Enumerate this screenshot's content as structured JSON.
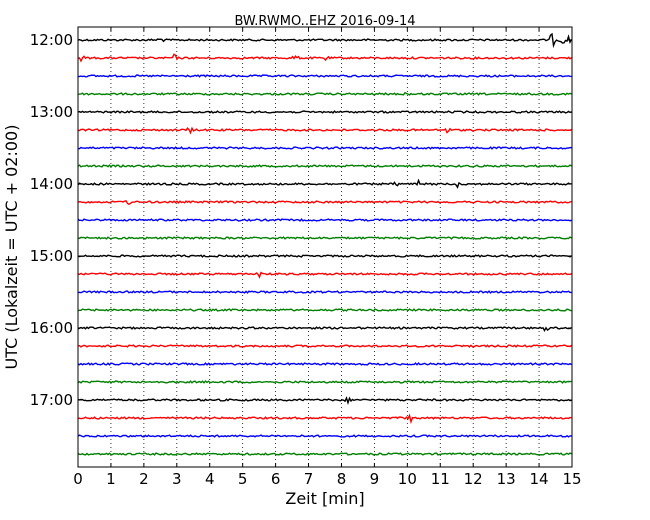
{
  "chart_data": {
    "type": "line",
    "title": "BW.RWMO..EHZ 2016-09-14",
    "xlabel": "Zeit  [min]",
    "ylabel": "UTC (Lokalzeit = UTC + 02:00)",
    "xlim": [
      0,
      15
    ],
    "x_ticks": [
      "0",
      "1",
      "2",
      "3",
      "4",
      "5",
      "6",
      "7",
      "8",
      "9",
      "10",
      "11",
      "12",
      "13",
      "14",
      "15"
    ],
    "y_ticks": [
      "12:00",
      "13:00",
      "14:00",
      "15:00",
      "16:00",
      "17:00"
    ],
    "y_tick_traces": [
      0,
      4,
      8,
      12,
      16,
      20
    ],
    "trace_count": 24,
    "trace_colors": [
      "#000000",
      "#ff0000",
      "#0000ff",
      "#008000"
    ],
    "grid": "vertical dotted",
    "events": [
      {
        "trace": 0,
        "x": 14.4,
        "amp": 7
      },
      {
        "trace": 0,
        "x": 14.7,
        "amp": 4
      },
      {
        "trace": 0,
        "x": 14.9,
        "amp": 4
      },
      {
        "trace": 0,
        "x": 2.5,
        "amp": 3
      },
      {
        "trace": 1,
        "x": 0.1,
        "amp": 3
      },
      {
        "trace": 1,
        "x": 2.9,
        "amp": 4
      },
      {
        "trace": 1,
        "x": 6.6,
        "amp": 3
      },
      {
        "trace": 1,
        "x": 7.5,
        "amp": 3
      },
      {
        "trace": 3,
        "x": 10.0,
        "amp": 3
      },
      {
        "trace": 5,
        "x": 3.4,
        "amp": 3
      },
      {
        "trace": 5,
        "x": 11.2,
        "amp": 3
      },
      {
        "trace": 8,
        "x": 10.3,
        "amp": 4
      },
      {
        "trace": 8,
        "x": 9.7,
        "amp": 3
      },
      {
        "trace": 8,
        "x": 11.5,
        "amp": 3
      },
      {
        "trace": 9,
        "x": 1.5,
        "amp": 3
      },
      {
        "trace": 13,
        "x": 5.5,
        "amp": 3
      },
      {
        "trace": 16,
        "x": 14.2,
        "amp": 3
      },
      {
        "trace": 20,
        "x": 8.2,
        "amp": 2
      },
      {
        "trace": 21,
        "x": 10.05,
        "amp": 8
      }
    ]
  }
}
